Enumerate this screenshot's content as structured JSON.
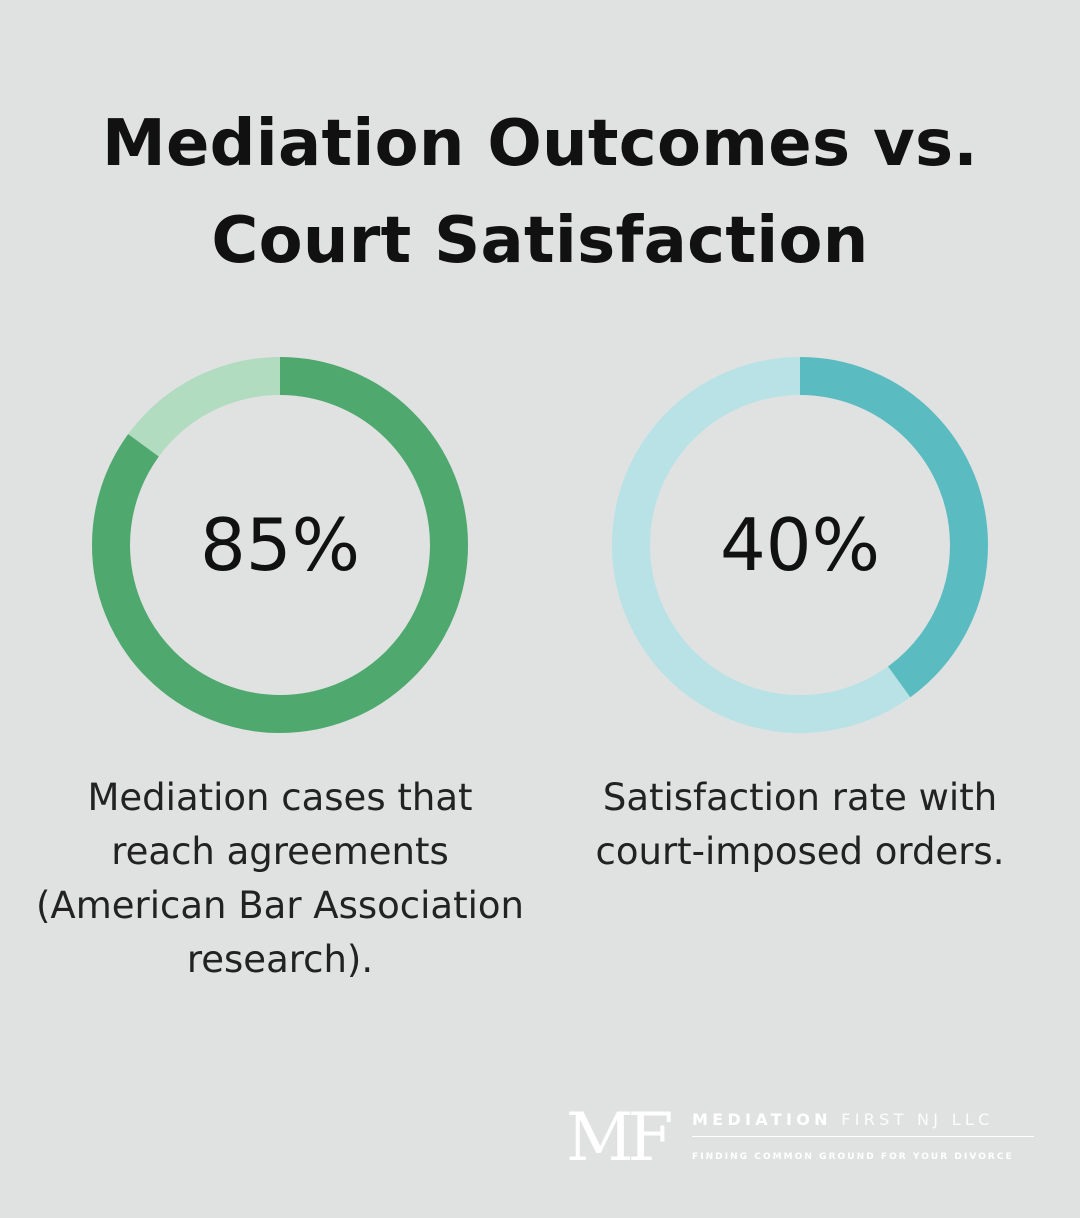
{
  "title_lines": [
    "Mediation Outcomes vs.",
    "Court Satisfaction"
  ],
  "chart_data": [
    {
      "type": "pie",
      "value": 85,
      "label": "85%",
      "caption_lines": [
        "Mediation cases that",
        "reach agreements",
        "(American Bar Association",
        "research)."
      ],
      "color": "#4fa86e",
      "track_color": "#b1dcc0"
    },
    {
      "type": "pie",
      "value": 40,
      "label": "40%",
      "caption_lines": [
        "Satisfaction rate with",
        "court-imposed orders."
      ],
      "color": "#5abbc1",
      "track_color": "#b8e2e5"
    }
  ],
  "logo": {
    "mark": "MF",
    "name_bold": "MEDIATION",
    "name_light": "FIRST NJ LLC",
    "tagline": "FINDING COMMON GROUND FOR YOUR DIVORCE"
  }
}
